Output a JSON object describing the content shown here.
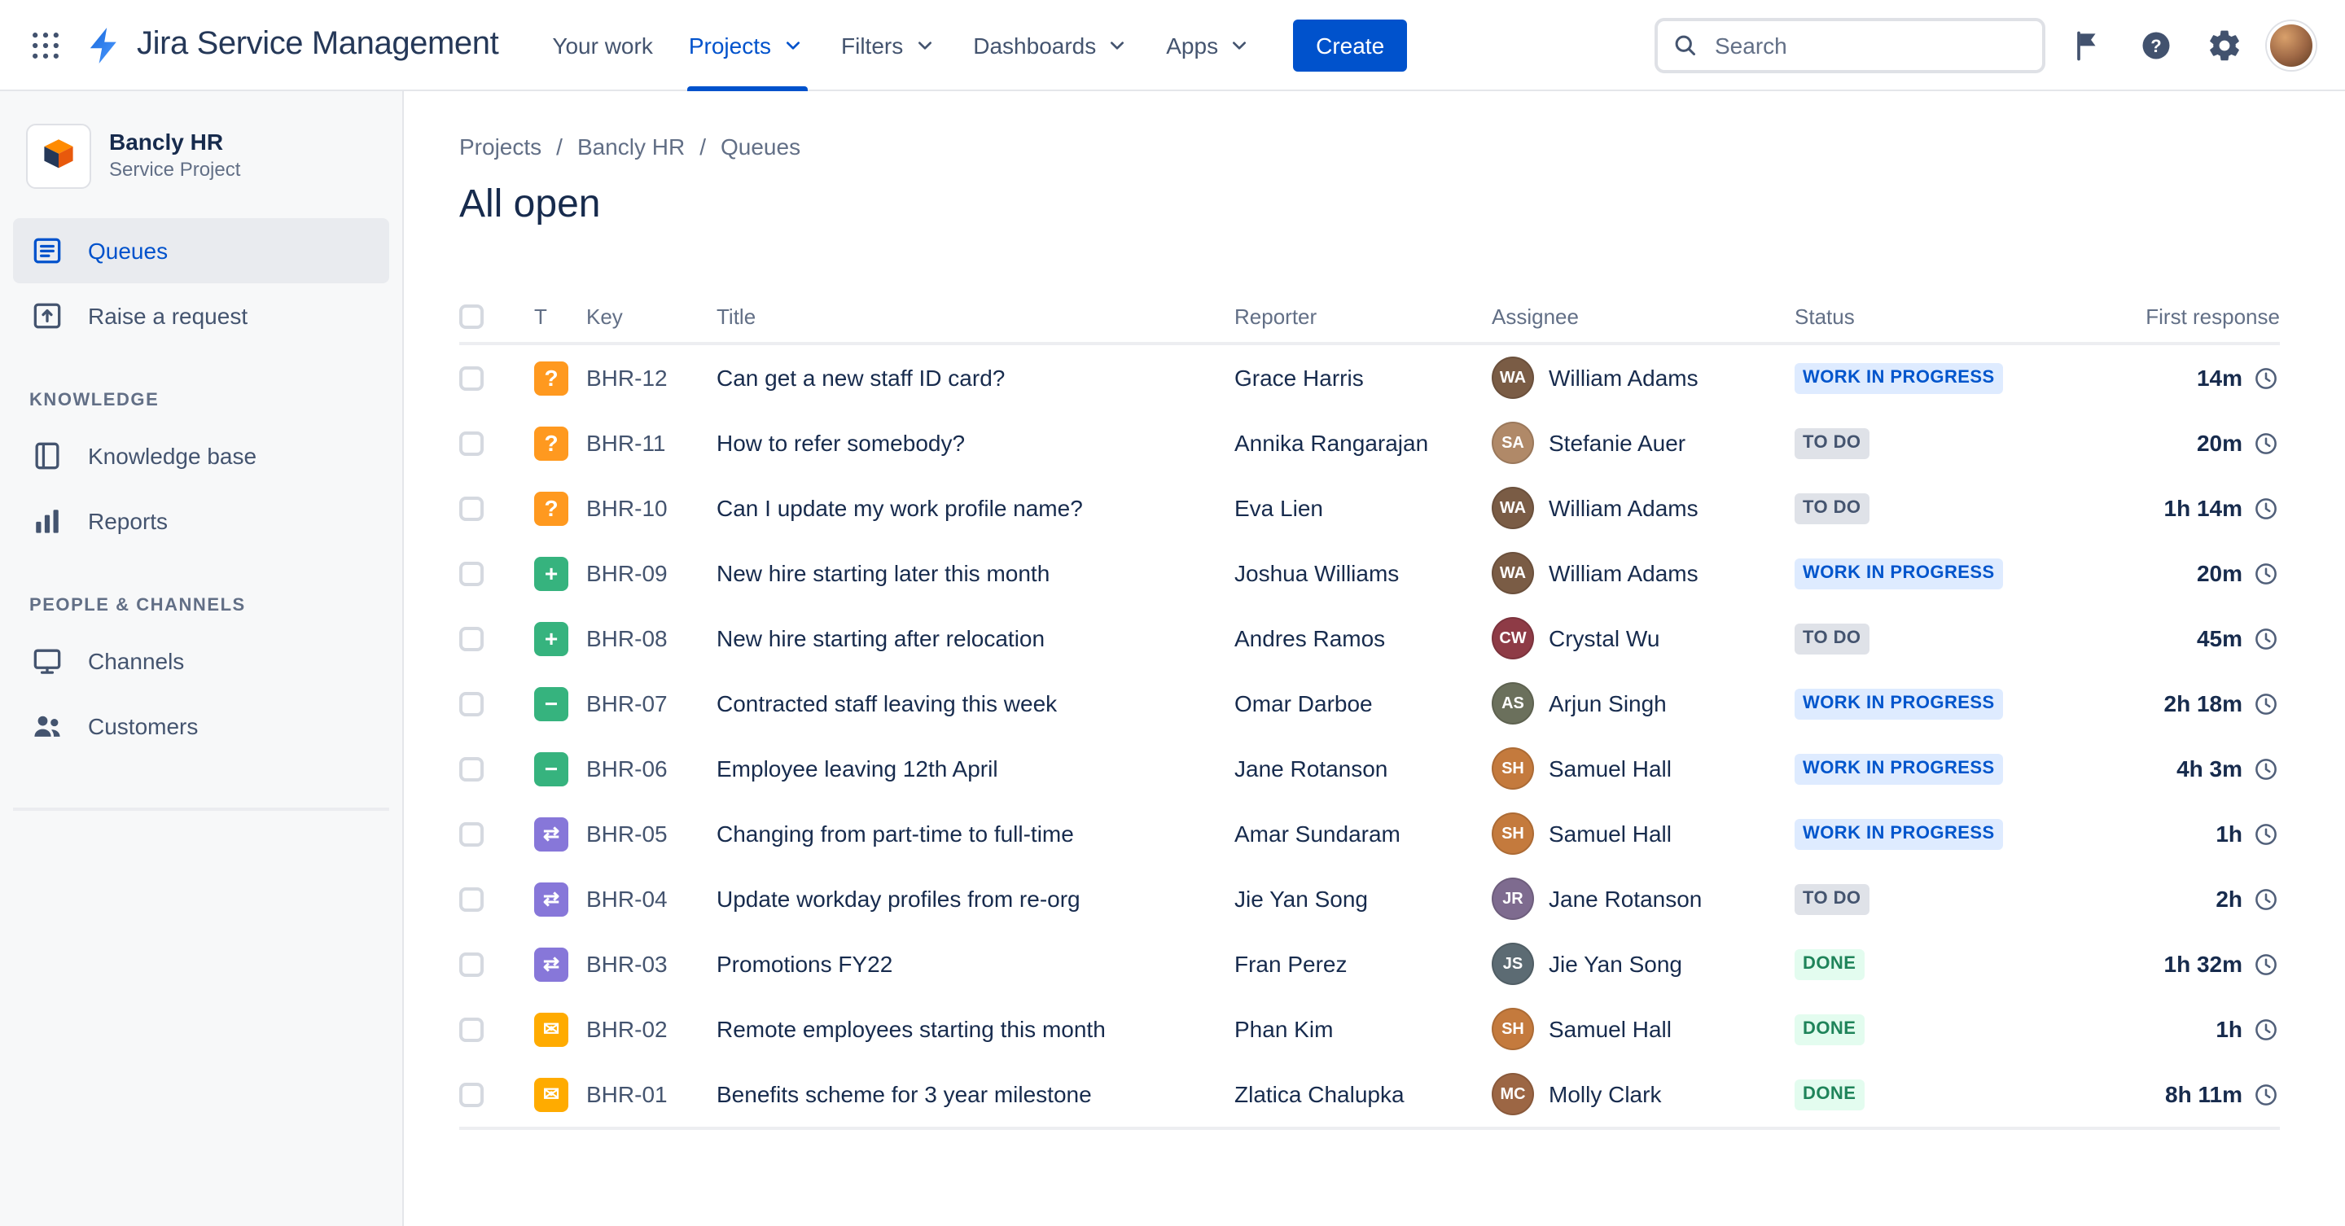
{
  "topbar": {
    "app_title": "Jira Service Management",
    "nav": [
      {
        "label": "Your work",
        "chevron": false,
        "active": false
      },
      {
        "label": "Projects",
        "chevron": true,
        "active": true
      },
      {
        "label": "Filters",
        "chevron": true,
        "active": false
      },
      {
        "label": "Dashboards",
        "chevron": true,
        "active": false
      },
      {
        "label": "Apps",
        "chevron": true,
        "active": false
      }
    ],
    "create_label": "Create",
    "search_placeholder": "Search"
  },
  "sidebar": {
    "project_name": "Bancly HR",
    "project_type": "Service Project",
    "groups": [
      {
        "label": "",
        "items": [
          {
            "id": "queues",
            "label": "Queues",
            "icon": "queues",
            "selected": true
          },
          {
            "id": "raise-a-request",
            "label": "Raise a request",
            "icon": "raise-request",
            "selected": false
          }
        ]
      },
      {
        "label": "KNOWLEDGE",
        "items": [
          {
            "id": "knowledge-base",
            "label": "Knowledge base",
            "icon": "book",
            "selected": false
          },
          {
            "id": "reports",
            "label": "Reports",
            "icon": "chart",
            "selected": false
          }
        ]
      },
      {
        "label": "PEOPLE & CHANNELS",
        "items": [
          {
            "id": "channels",
            "label": "Channels",
            "icon": "monitor",
            "selected": false
          },
          {
            "id": "customers",
            "label": "Customers",
            "icon": "people",
            "selected": false
          }
        ]
      }
    ]
  },
  "breadcrumb": [
    "Projects",
    "Bancly HR",
    "Queues"
  ],
  "page_title": "All open",
  "type_icons": {
    "question": {
      "name": "question-request-icon",
      "glyph": "?",
      "color": "#FF991F"
    },
    "new-hire": {
      "name": "new-hire-request-icon",
      "glyph": "+",
      "color": "#36B37E"
    },
    "leaver": {
      "name": "leaver-request-icon",
      "glyph": "−",
      "color": "#36B37E"
    },
    "change": {
      "name": "change-request-icon",
      "glyph": "⇄",
      "color": "#8777D9"
    },
    "email": {
      "name": "email-request-icon",
      "glyph": "✉",
      "color": "#FFAB00"
    }
  },
  "status_colors": {
    "inprogress": {
      "bg": "#DEEBFF",
      "fg": "#0055CC"
    },
    "todo": {
      "bg": "#DFE2E8",
      "fg": "#44546F"
    },
    "done": {
      "bg": "#E3FCEF",
      "fg": "#1F845A"
    }
  },
  "table": {
    "headers": {
      "type": "T",
      "key": "Key",
      "title": "Title",
      "reporter": "Reporter",
      "assignee": "Assignee",
      "status": "Status",
      "first_response": "First response"
    },
    "rows": [
      {
        "key": "BHR-12",
        "type": "question",
        "title": "Can get a new staff ID card?",
        "reporter": "Grace Harris",
        "assignee": {
          "name": "William Adams",
          "initials": "WA",
          "color": "#7A5C45"
        },
        "status": {
          "label": "WORK IN PROGRESS",
          "kind": "inprogress"
        },
        "first_response": "14m"
      },
      {
        "key": "BHR-11",
        "type": "question",
        "title": "How to refer somebody?",
        "reporter": "Annika Rangarajan",
        "assignee": {
          "name": "Stefanie Auer",
          "initials": "SA",
          "color": "#B08968"
        },
        "status": {
          "label": "TO DO",
          "kind": "todo"
        },
        "first_response": "20m"
      },
      {
        "key": "BHR-10",
        "type": "question",
        "title": "Can I update my work profile name?",
        "reporter": "Eva Lien",
        "assignee": {
          "name": "William Adams",
          "initials": "WA",
          "color": "#7A5C45"
        },
        "status": {
          "label": "TO DO",
          "kind": "todo"
        },
        "first_response": "1h 14m"
      },
      {
        "key": "BHR-09",
        "type": "new-hire",
        "title": "New hire starting later this month",
        "reporter": "Joshua Williams",
        "assignee": {
          "name": "William Adams",
          "initials": "WA",
          "color": "#7A5C45"
        },
        "status": {
          "label": "WORK IN PROGRESS",
          "kind": "inprogress"
        },
        "first_response": "20m"
      },
      {
        "key": "BHR-08",
        "type": "new-hire",
        "title": "New hire starting after relocation",
        "reporter": "Andres Ramos",
        "assignee": {
          "name": "Crystal Wu",
          "initials": "CW",
          "color": "#8E3B46"
        },
        "status": {
          "label": "TO DO",
          "kind": "todo"
        },
        "first_response": "45m"
      },
      {
        "key": "BHR-07",
        "type": "leaver",
        "title": "Contracted staff leaving this week",
        "reporter": "Omar Darboe",
        "assignee": {
          "name": "Arjun Singh",
          "initials": "AS",
          "color": "#6B705C"
        },
        "status": {
          "label": "WORK IN PROGRESS",
          "kind": "inprogress"
        },
        "first_response": "2h 18m"
      },
      {
        "key": "BHR-06",
        "type": "leaver",
        "title": "Employee leaving 12th April",
        "reporter": "Jane Rotanson",
        "assignee": {
          "name": "Samuel Hall",
          "initials": "SH",
          "color": "#C47A3D"
        },
        "status": {
          "label": "WORK IN PROGRESS",
          "kind": "inprogress"
        },
        "first_response": "4h 3m"
      },
      {
        "key": "BHR-05",
        "type": "change",
        "title": "Changing from part-time to full-time",
        "reporter": "Amar Sundaram",
        "assignee": {
          "name": "Samuel Hall",
          "initials": "SH",
          "color": "#C47A3D"
        },
        "status": {
          "label": "WORK IN PROGRESS",
          "kind": "inprogress"
        },
        "first_response": "1h"
      },
      {
        "key": "BHR-04",
        "type": "change",
        "title": "Update workday profiles from re-org",
        "reporter": "Jie Yan Song",
        "assignee": {
          "name": "Jane Rotanson",
          "initials": "JR",
          "color": "#7E6B8F"
        },
        "status": {
          "label": "TO DO",
          "kind": "todo"
        },
        "first_response": "2h"
      },
      {
        "key": "BHR-03",
        "type": "change",
        "title": "Promotions FY22",
        "reporter": "Fran Perez",
        "assignee": {
          "name": "Jie Yan Song",
          "initials": "JS",
          "color": "#5C6B73"
        },
        "status": {
          "label": "DONE",
          "kind": "done"
        },
        "first_response": "1h 32m"
      },
      {
        "key": "BHR-02",
        "type": "email",
        "title": "Remote employees starting this month",
        "reporter": "Phan Kim",
        "assignee": {
          "name": "Samuel Hall",
          "initials": "SH",
          "color": "#C47A3D"
        },
        "status": {
          "label": "DONE",
          "kind": "done"
        },
        "first_response": "1h"
      },
      {
        "key": "BHR-01",
        "type": "email",
        "title": "Benefits scheme for 3 year milestone",
        "reporter": "Zlatica Chalupka",
        "assignee": {
          "name": "Molly Clark",
          "initials": "MC",
          "color": "#9C6644"
        },
        "status": {
          "label": "DONE",
          "kind": "done"
        },
        "first_response": "8h 11m"
      }
    ]
  }
}
